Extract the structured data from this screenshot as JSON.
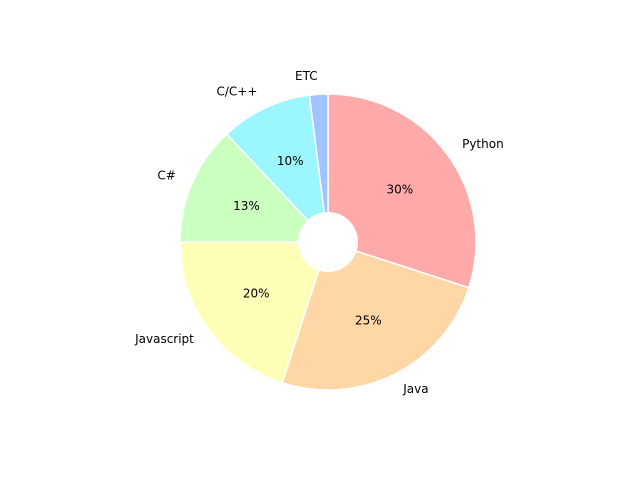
{
  "chart_data": {
    "type": "pie",
    "categories": [
      "Python",
      "Java",
      "Javascript",
      "C#",
      "C/C++",
      "ETC"
    ],
    "values": [
      30,
      25,
      20,
      13,
      10,
      2
    ],
    "value_labels": [
      "30%",
      "25%",
      "20%",
      "13%",
      "10%",
      ""
    ],
    "colors": [
      "#ffaaaa",
      "#ffd6a5",
      "#fdffb6",
      "#caffbf",
      "#9bf6ff",
      "#a0c4ff"
    ],
    "start_angle_deg": 90,
    "direction": "clockwise",
    "donut": true
  }
}
